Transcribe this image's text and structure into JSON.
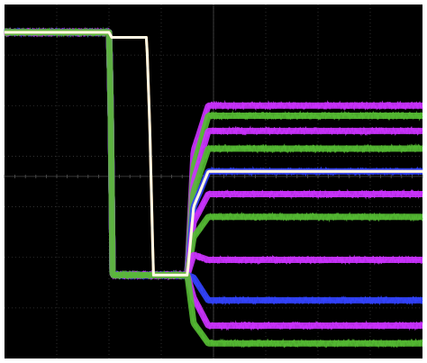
{
  "chart_data": {
    "type": "line",
    "title": "",
    "xlabel": "",
    "ylabel": "",
    "grid": true,
    "grid_divisions": {
      "x": 8,
      "y": 7
    },
    "xlim": [
      0,
      8
    ],
    "ylim": [
      -3.6,
      3.4
    ],
    "background": "#000000",
    "grid_color": "#3a3a3a",
    "series": [
      {
        "color": "#cc33ff",
        "x": [
          0,
          2.0,
          2.03,
          2.07,
          2.8,
          3.5,
          3.62,
          3.9,
          8
        ],
        "y": [
          2.85,
          2.85,
          1.6,
          -1.95,
          -1.95,
          -1.95,
          0.5,
          1.4,
          1.4
        ]
      },
      {
        "color": "#55bb33",
        "x": [
          0,
          2.0,
          2.03,
          2.07,
          2.8,
          3.5,
          3.62,
          3.9,
          8
        ],
        "y": [
          2.85,
          2.85,
          1.6,
          -1.95,
          -1.95,
          -1.95,
          0.2,
          1.2,
          1.2
        ]
      },
      {
        "color": "#cc33ff",
        "x": [
          0,
          2.0,
          2.03,
          2.07,
          2.8,
          3.5,
          3.62,
          3.9,
          8
        ],
        "y": [
          2.85,
          2.85,
          1.6,
          -1.95,
          -1.95,
          -1.95,
          -0.1,
          0.9,
          0.9
        ]
      },
      {
        "color": "#55bb33",
        "x": [
          0,
          2.0,
          2.03,
          2.07,
          2.8,
          3.5,
          3.62,
          3.9,
          8
        ],
        "y": [
          2.85,
          2.85,
          1.6,
          -1.95,
          -1.95,
          -1.95,
          -0.3,
          0.55,
          0.55
        ]
      },
      {
        "color": "#3344ff",
        "x": [
          0,
          2.0,
          2.03,
          2.07,
          2.8,
          3.5,
          3.62,
          3.9,
          8
        ],
        "y": [
          2.85,
          2.85,
          1.6,
          -1.95,
          -1.95,
          -1.95,
          -0.6,
          0.1,
          0.1
        ]
      },
      {
        "color": "#cc33ff",
        "x": [
          0,
          2.0,
          2.03,
          2.07,
          2.8,
          3.5,
          3.62,
          3.9,
          8
        ],
        "y": [
          2.85,
          2.85,
          1.6,
          -1.95,
          -1.95,
          -1.95,
          -0.9,
          -0.35,
          -0.35
        ]
      },
      {
        "color": "#55bb33",
        "x": [
          0,
          2.0,
          2.03,
          2.07,
          2.8,
          3.5,
          3.62,
          3.9,
          8
        ],
        "y": [
          2.85,
          2.85,
          1.6,
          -1.95,
          -1.95,
          -1.95,
          -1.2,
          -0.8,
          -0.8
        ]
      },
      {
        "color": "#cc33ff",
        "x": [
          0,
          2.0,
          2.03,
          2.07,
          2.8,
          3.5,
          3.62,
          3.9,
          8
        ],
        "y": [
          2.85,
          2.85,
          1.6,
          -1.95,
          -1.95,
          -1.95,
          -1.55,
          -1.65,
          -1.65
        ]
      },
      {
        "color": "#3344ff",
        "x": [
          0,
          2.0,
          2.03,
          2.07,
          2.8,
          3.5,
          3.62,
          3.9,
          8
        ],
        "y": [
          2.85,
          2.85,
          1.6,
          -1.95,
          -1.95,
          -1.95,
          -2.0,
          -2.45,
          -2.45
        ]
      },
      {
        "color": "#cc33ff",
        "x": [
          0,
          2.0,
          2.03,
          2.07,
          2.8,
          3.5,
          3.62,
          3.9,
          8
        ],
        "y": [
          2.85,
          2.85,
          1.6,
          -1.95,
          -1.95,
          -1.95,
          -2.4,
          -2.95,
          -2.95
        ]
      },
      {
        "color": "#55bb33",
        "x": [
          0,
          2.0,
          2.03,
          2.07,
          2.8,
          3.5,
          3.62,
          3.9,
          8
        ],
        "y": [
          2.85,
          2.85,
          1.6,
          -1.95,
          -1.95,
          -1.95,
          -2.9,
          -3.3,
          -3.3
        ]
      },
      {
        "color": "#ff9933",
        "x": [
          0,
          2.0,
          2.05,
          2.1,
          2.72,
          2.78,
          2.85,
          3.5,
          3.62,
          3.9,
          8
        ],
        "y": [
          2.85,
          2.85,
          2.75,
          2.75,
          2.75,
          1.0,
          -1.95,
          -1.95,
          -0.6,
          0.1,
          0.1
        ]
      },
      {
        "color": "#ffffee",
        "x": [
          0,
          2.0,
          2.05,
          2.1,
          2.72,
          2.78,
          2.85,
          3.5,
          3.62,
          3.9,
          8
        ],
        "y": [
          2.85,
          2.85,
          2.75,
          2.75,
          2.75,
          1.0,
          -1.95,
          -1.95,
          -0.6,
          0.1,
          0.1
        ]
      }
    ]
  }
}
